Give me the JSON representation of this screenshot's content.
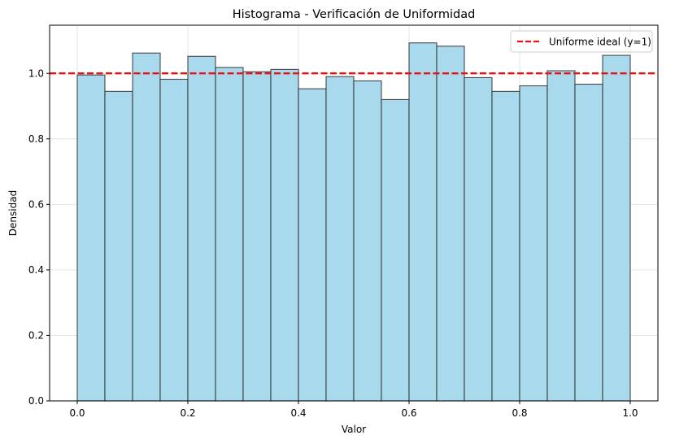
{
  "chart_data": {
    "type": "bar",
    "title": "Histograma - Verificación de Uniformidad",
    "xlabel": "Valor",
    "ylabel": "Densidad",
    "xlim": [
      -0.05,
      1.05
    ],
    "ylim": [
      0,
      1.147
    ],
    "bin_edges": [
      0.0,
      0.05,
      0.1,
      0.15,
      0.2,
      0.25,
      0.3,
      0.35,
      0.4,
      0.45,
      0.5,
      0.55,
      0.6,
      0.65,
      0.7,
      0.75,
      0.8,
      0.85,
      0.9,
      0.95,
      1.0
    ],
    "values": [
      0.995,
      0.945,
      1.062,
      0.982,
      1.052,
      1.018,
      1.005,
      1.012,
      0.953,
      0.99,
      0.977,
      0.92,
      1.093,
      1.083,
      0.987,
      0.945,
      0.962,
      1.008,
      0.967,
      1.055
    ],
    "x_ticks": [
      "0.0",
      "0.2",
      "0.4",
      "0.6",
      "0.8",
      "1.0"
    ],
    "y_ticks": [
      "0.0",
      "0.2",
      "0.4",
      "0.6",
      "0.8",
      "1.0"
    ],
    "grid": true,
    "reference_line": {
      "y": 1.0,
      "label": "Uniforme ideal (y=1)",
      "color": "#ee1111",
      "style": "dashed"
    },
    "legend_position": "top-right",
    "bar_color": "#a9d9ec",
    "bar_edge_color": "#2b2b2b"
  }
}
